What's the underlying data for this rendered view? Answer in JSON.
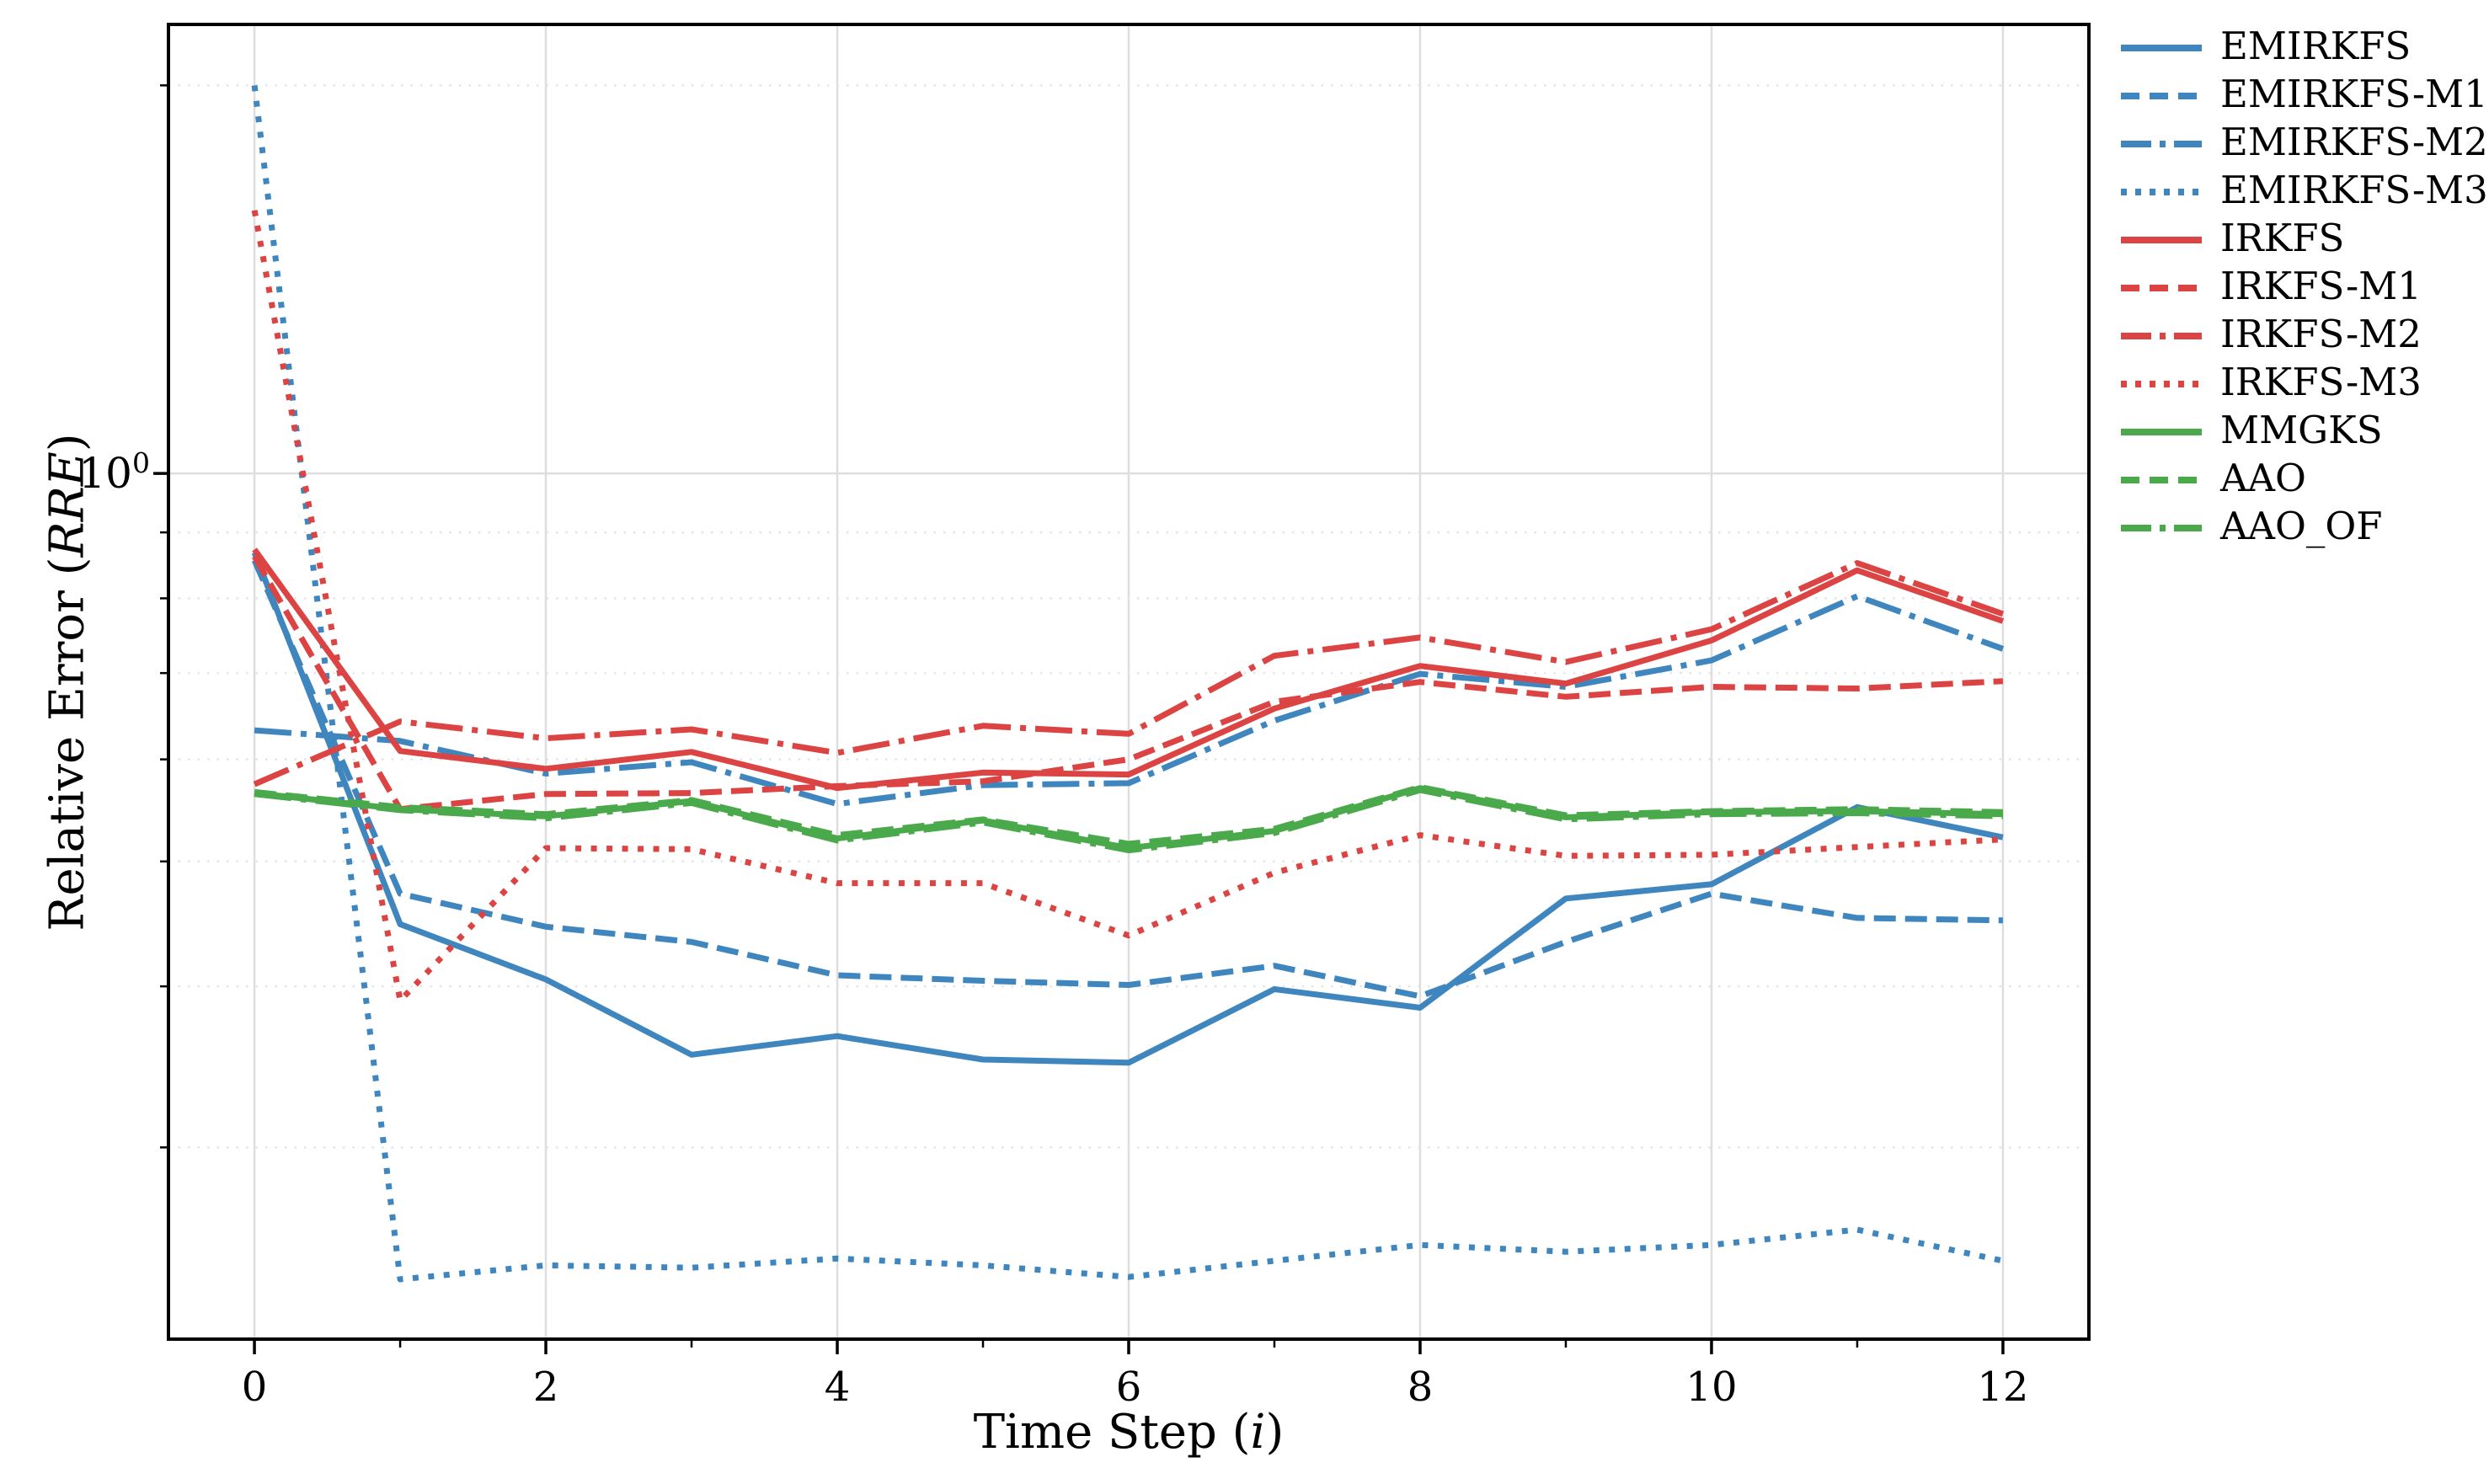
{
  "figure": {
    "xlabel": {
      "prefix": "Time Step (",
      "italic": "i",
      "suffix": ")"
    },
    "ylabel": {
      "prefix": "Relative Error (",
      "italic": "RRE",
      "suffix": ")"
    },
    "y_tick_label": {
      "base": "10",
      "exponent": "0"
    }
  },
  "chart_data": {
    "type": "line",
    "title": "",
    "xlabel": "Time Step (i)",
    "ylabel": "Relative Error (RRE)",
    "yscale": "log",
    "xlim": [
      -0.59,
      12.59
    ],
    "ylim": [
      0.213,
      2.23
    ],
    "grid": "on",
    "legend_position": "outside-upper-right",
    "x": [
      0,
      1,
      2,
      3,
      4,
      5,
      6,
      7,
      8,
      9,
      10,
      11,
      12
    ],
    "x_ticks": {
      "major": [
        0,
        2,
        4,
        6,
        8,
        10,
        12
      ],
      "labels": [
        "0",
        "2",
        "4",
        "6",
        "8",
        "10",
        "12"
      ],
      "minor": [
        1,
        3,
        5,
        7,
        9,
        11
      ]
    },
    "y_ticks": {
      "major": [
        1.0
      ],
      "major_labels": [
        "10^0"
      ],
      "minor": [
        0.3,
        0.4,
        0.5,
        0.6,
        0.7,
        0.8,
        0.9,
        2.0
      ]
    },
    "colors": {
      "blue": "#3f86bf",
      "red": "#dc4343",
      "green": "#4aa94a",
      "grid_major": "#dedede",
      "grid_minor": "#e4e4e4",
      "spine": "#000000"
    },
    "series": [
      {
        "name": "EMIRKFS",
        "color": "#3f86bf",
        "style": "solid",
        "values": [
          0.868,
          0.447,
          0.405,
          0.354,
          0.366,
          0.351,
          0.349,
          0.398,
          0.385,
          0.468,
          0.48,
          0.551,
          0.522
        ]
      },
      {
        "name": "EMIRKFS-M1",
        "color": "#3f86bf",
        "style": "dashed",
        "values": [
          0.856,
          0.472,
          0.445,
          0.433,
          0.408,
          0.404,
          0.401,
          0.415,
          0.393,
          0.433,
          0.472,
          0.452,
          0.45
        ]
      },
      {
        "name": "EMIRKFS-M2",
        "color": "#3f86bf",
        "style": "dashdot",
        "values": [
          0.632,
          0.62,
          0.585,
          0.597,
          0.554,
          0.573,
          0.575,
          0.643,
          0.699,
          0.683,
          0.716,
          0.803,
          0.731
        ]
      },
      {
        "name": "EMIRKFS-M3",
        "color": "#3f86bf",
        "style": "dotted",
        "values": [
          2.0,
          0.237,
          0.243,
          0.242,
          0.246,
          0.243,
          0.238,
          0.245,
          0.252,
          0.249,
          0.252,
          0.259,
          0.245
        ]
      },
      {
        "name": "IRKFS",
        "color": "#dc4343",
        "style": "solid",
        "values": [
          0.873,
          0.609,
          0.59,
          0.608,
          0.57,
          0.586,
          0.584,
          0.657,
          0.709,
          0.687,
          0.742,
          0.841,
          0.768
        ]
      },
      {
        "name": "IRKFS-M1",
        "color": "#dc4343",
        "style": "dashed",
        "values": [
          0.862,
          0.549,
          0.564,
          0.565,
          0.572,
          0.577,
          0.6,
          0.665,
          0.689,
          0.671,
          0.683,
          0.681,
          0.69
        ]
      },
      {
        "name": "IRKFS-M2",
        "color": "#dc4343",
        "style": "dashdot",
        "values": [
          0.574,
          0.642,
          0.623,
          0.633,
          0.607,
          0.637,
          0.628,
          0.722,
          0.746,
          0.714,
          0.757,
          0.852,
          0.778
        ]
      },
      {
        "name": "IRKFS-M3",
        "color": "#dc4343",
        "style": "dotted",
        "values": [
          1.6,
          0.39,
          0.512,
          0.511,
          0.481,
          0.481,
          0.438,
          0.49,
          0.524,
          0.505,
          0.506,
          0.513,
          0.52
        ]
      },
      {
        "name": "MMGKS",
        "color": "#4aa94a",
        "style": "solid",
        "values": [
          0.565,
          0.549,
          0.542,
          0.557,
          0.521,
          0.538,
          0.512,
          0.528,
          0.57,
          0.541,
          0.546,
          0.547,
          0.544
        ]
      },
      {
        "name": "AAO",
        "color": "#4aa94a",
        "style": "dashed",
        "values": [
          0.566,
          0.551,
          0.544,
          0.558,
          0.524,
          0.539,
          0.516,
          0.53,
          0.571,
          0.543,
          0.547,
          0.549,
          0.546
        ]
      },
      {
        "name": "AAO_OF",
        "color": "#4aa94a",
        "style": "dashdot",
        "values": [
          0.564,
          0.548,
          0.54,
          0.555,
          0.519,
          0.536,
          0.51,
          0.526,
          0.568,
          0.539,
          0.544,
          0.545,
          0.542
        ]
      }
    ]
  }
}
